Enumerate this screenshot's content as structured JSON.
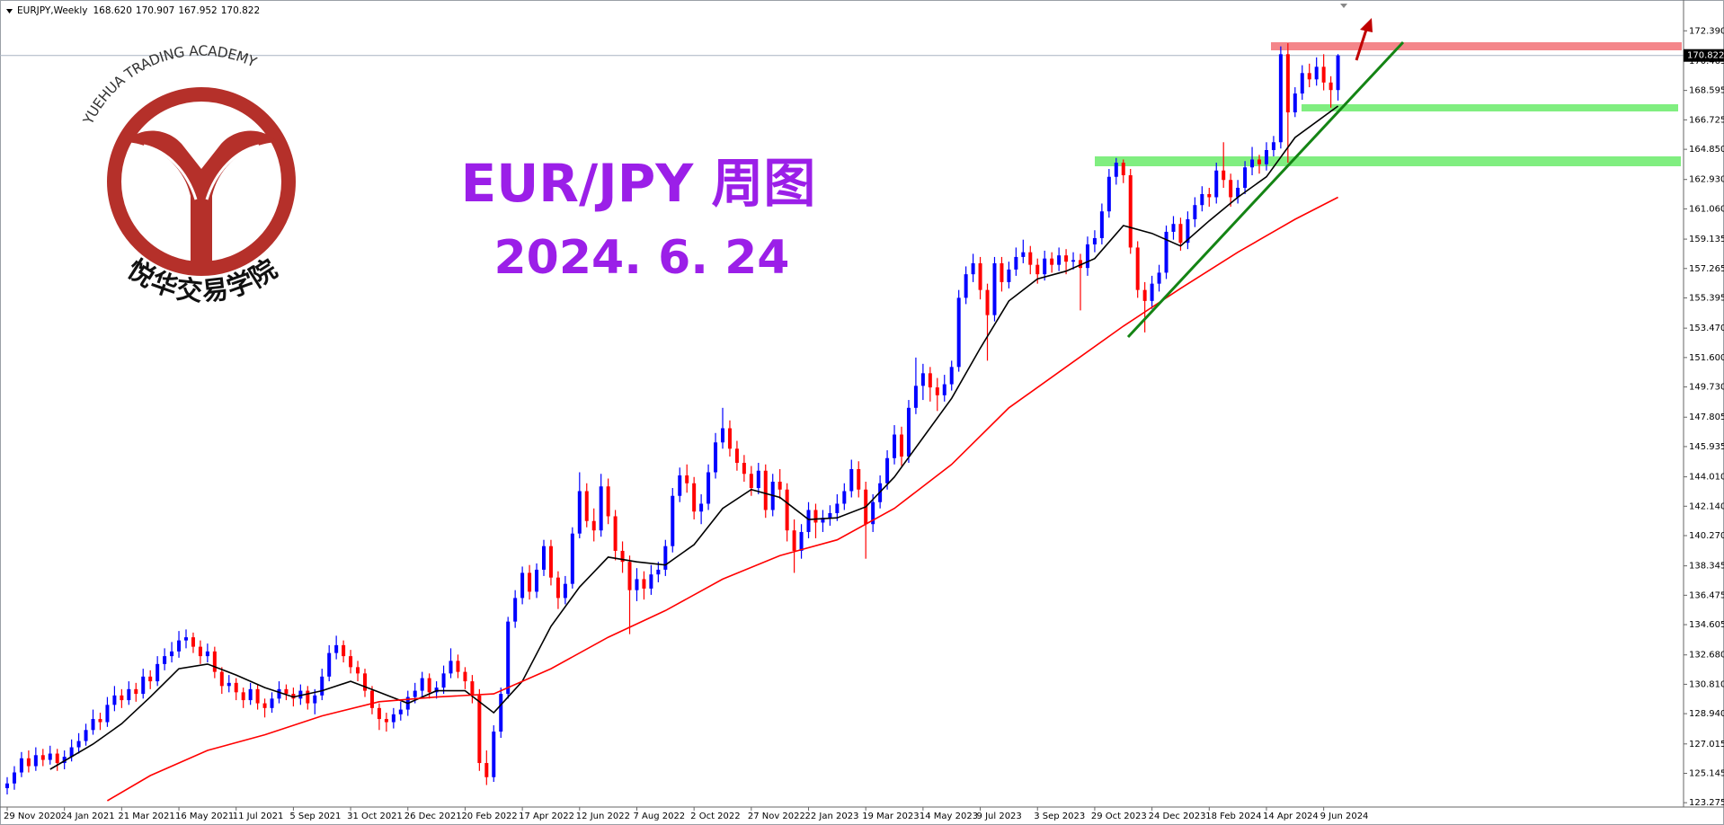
{
  "chart_data": {
    "type": "candlestick",
    "header_symbol": "EURJPY,Weekly",
    "header_labels": [
      "168.620",
      "170.907",
      "167.952",
      "170.822"
    ],
    "title": "EUR/JPY 周图",
    "subtitle": "2024. 6. 24",
    "logo_text": "YUEHUA TRADING ACADEMY",
    "logo_name": "悦华交易学院",
    "up_color": "#0000ff",
    "down_color": "#ff0000",
    "ylim": [
      123.0,
      174.35
    ],
    "yticks": [
      {
        "value": 172.39,
        "label": "172.390"
      },
      170.465,
      168.595,
      166.725,
      {
        "value": 164.85,
        "label": "164.850"
      },
      {
        "value": 162.93,
        "label": "162.930"
      },
      {
        "value": 161.06,
        "label": "161.060"
      },
      159.135,
      157.265,
      155.395,
      {
        "value": 153.47,
        "label": "153.470"
      },
      {
        "value": 151.6,
        "label": "151.600"
      },
      {
        "value": 149.73,
        "label": "149.730"
      },
      147.805,
      145.935,
      {
        "value": 144.01,
        "label": "144.010"
      },
      {
        "value": 142.14,
        "label": "142.140"
      },
      {
        "value": 140.27,
        "label": "140.270"
      },
      138.345,
      136.475,
      134.605,
      {
        "value": 132.68,
        "label": "132.680"
      },
      {
        "value": 130.81,
        "label": "130.810"
      },
      {
        "value": 128.94,
        "label": "128.940"
      },
      127.015,
      125.145,
      123.275
    ],
    "x_labels": [
      "29 Nov 2020",
      "24 Jan 2021",
      "21 Mar 2021",
      "16 May 2021",
      "11 Jul 2021",
      "5 Sep 2021",
      "31 Oct 2021",
      "26 Dec 2021",
      "20 Feb 2022",
      "17 Apr 2022",
      "12 Jun 2022",
      "7 Aug 2022",
      "2 Oct 2022",
      "27 Nov 2022",
      "22 Jan 2023",
      "19 Mar 2023",
      "14 May 2023",
      "9 Jul 2023",
      "3 Sep 2023",
      "29 Oct 2023",
      "24 Dec 2023",
      "18 Feb 2024",
      "14 Apr 2024",
      "9 Jun 2024"
    ],
    "ohlc": [
      [
        124.2,
        124.9,
        123.8,
        124.5
      ],
      [
        124.5,
        125.6,
        124.1,
        125.2
      ],
      [
        125.2,
        126.5,
        124.9,
        126.1
      ],
      [
        126.1,
        126.6,
        125.2,
        125.6
      ],
      [
        125.6,
        126.8,
        125.3,
        126.3
      ],
      [
        126.3,
        126.7,
        125.6,
        126.0
      ],
      [
        126.0,
        126.9,
        125.7,
        126.4
      ],
      [
        126.4,
        126.7,
        125.3,
        125.8
      ],
      [
        125.8,
        126.6,
        125.4,
        126.2
      ],
      [
        126.2,
        127.3,
        125.9,
        126.8
      ],
      [
        126.8,
        127.7,
        126.4,
        127.2
      ],
      [
        127.2,
        128.3,
        126.9,
        127.9
      ],
      [
        127.9,
        129.2,
        127.6,
        128.6
      ],
      [
        128.6,
        129.0,
        127.9,
        128.4
      ],
      [
        128.4,
        130.0,
        128.1,
        129.5
      ],
      [
        129.5,
        130.7,
        129.1,
        130.1
      ],
      [
        130.1,
        130.5,
        129.3,
        129.8
      ],
      [
        129.8,
        131.0,
        129.5,
        130.5
      ],
      [
        130.5,
        130.9,
        129.7,
        130.2
      ],
      [
        130.2,
        131.8,
        129.9,
        131.3
      ],
      [
        131.3,
        131.7,
        130.5,
        131.0
      ],
      [
        131.0,
        132.6,
        130.7,
        132.1
      ],
      [
        132.1,
        133.1,
        131.7,
        132.6
      ],
      [
        132.6,
        133.5,
        132.2,
        132.9
      ],
      [
        132.9,
        134.2,
        132.5,
        133.6
      ],
      [
        133.6,
        134.3,
        133.1,
        133.8
      ],
      [
        133.8,
        134.1,
        132.8,
        133.2
      ],
      [
        133.2,
        133.6,
        132.1,
        132.6
      ],
      [
        132.6,
        133.4,
        132.2,
        132.9
      ],
      [
        132.9,
        133.2,
        131.2,
        131.6
      ],
      [
        131.6,
        131.9,
        130.2,
        130.7
      ],
      [
        130.7,
        131.4,
        130.3,
        130.9
      ],
      [
        130.9,
        131.2,
        129.8,
        130.3
      ],
      [
        130.3,
        130.6,
        129.3,
        129.8
      ],
      [
        129.8,
        130.9,
        129.5,
        130.5
      ],
      [
        130.5,
        130.8,
        129.2,
        129.6
      ],
      [
        129.6,
        129.9,
        128.7,
        129.3
      ],
      [
        129.3,
        130.3,
        129.0,
        129.9
      ],
      [
        129.9,
        131.0,
        129.6,
        130.5
      ],
      [
        130.5,
        130.8,
        129.8,
        130.2
      ],
      [
        130.2,
        130.6,
        129.4,
        129.9
      ],
      [
        129.9,
        130.8,
        129.5,
        130.4
      ],
      [
        130.4,
        130.7,
        129.2,
        129.6
      ],
      [
        129.6,
        130.5,
        128.9,
        130.1
      ],
      [
        130.1,
        131.8,
        129.8,
        131.3
      ],
      [
        131.3,
        133.3,
        131.0,
        132.8
      ],
      [
        132.8,
        133.9,
        132.4,
        133.3
      ],
      [
        133.3,
        133.6,
        132.2,
        132.6
      ],
      [
        132.6,
        133.0,
        131.5,
        131.9
      ],
      [
        131.9,
        132.3,
        131.0,
        131.5
      ],
      [
        131.5,
        131.8,
        130.0,
        130.4
      ],
      [
        130.4,
        130.7,
        128.9,
        129.3
      ],
      [
        129.3,
        129.6,
        127.9,
        128.6
      ],
      [
        128.6,
        129.0,
        127.8,
        128.4
      ],
      [
        128.4,
        129.3,
        128.0,
        128.9
      ],
      [
        128.9,
        129.7,
        128.5,
        129.2
      ],
      [
        129.2,
        130.4,
        128.8,
        130.0
      ],
      [
        130.0,
        130.9,
        129.6,
        130.4
      ],
      [
        130.4,
        131.6,
        130.0,
        131.2
      ],
      [
        131.2,
        131.5,
        129.9,
        130.3
      ],
      [
        130.3,
        131.0,
        129.9,
        130.6
      ],
      [
        130.6,
        132.0,
        130.2,
        131.5
      ],
      [
        131.5,
        133.1,
        131.2,
        132.3
      ],
      [
        132.3,
        132.7,
        131.2,
        131.6
      ],
      [
        131.6,
        131.9,
        130.5,
        131.0
      ],
      [
        131.0,
        131.4,
        129.6,
        130.1
      ],
      [
        130.1,
        130.5,
        125.3,
        125.8
      ],
      [
        125.8,
        126.6,
        124.4,
        124.9
      ],
      [
        124.9,
        128.2,
        124.6,
        127.8
      ],
      [
        127.8,
        130.6,
        127.4,
        130.2
      ],
      [
        130.2,
        135.1,
        129.9,
        134.8
      ],
      [
        134.8,
        136.8,
        134.4,
        136.3
      ],
      [
        136.3,
        138.3,
        135.9,
        137.9
      ],
      [
        137.9,
        138.4,
        136.2,
        136.7
      ],
      [
        136.7,
        138.5,
        136.3,
        138.1
      ],
      [
        138.1,
        140.0,
        137.7,
        139.6
      ],
      [
        139.6,
        140.0,
        137.1,
        137.6
      ],
      [
        137.6,
        138.0,
        135.6,
        136.3
      ],
      [
        136.3,
        137.7,
        135.9,
        137.2
      ],
      [
        137.2,
        140.8,
        136.9,
        140.4
      ],
      [
        140.4,
        144.3,
        140.1,
        143.1
      ],
      [
        143.1,
        143.6,
        140.8,
        141.2
      ],
      [
        141.2,
        142.0,
        139.9,
        140.6
      ],
      [
        140.6,
        144.2,
        140.2,
        143.4
      ],
      [
        143.4,
        143.9,
        141.0,
        141.5
      ],
      [
        141.5,
        141.9,
        138.7,
        139.3
      ],
      [
        139.3,
        139.9,
        137.9,
        138.6
      ],
      [
        138.6,
        139.0,
        134.0,
        136.8
      ],
      [
        136.8,
        138.2,
        136.1,
        137.5
      ],
      [
        137.5,
        138.0,
        136.2,
        136.9
      ],
      [
        136.9,
        138.4,
        136.5,
        137.8
      ],
      [
        137.8,
        138.6,
        137.3,
        138.1
      ],
      [
        138.1,
        140.0,
        137.7,
        139.6
      ],
      [
        139.6,
        143.3,
        139.2,
        142.8
      ],
      [
        142.8,
        144.6,
        142.4,
        144.1
      ],
      [
        144.1,
        144.8,
        143.0,
        143.6
      ],
      [
        143.6,
        144.0,
        141.3,
        141.8
      ],
      [
        141.8,
        142.9,
        141.0,
        142.3
      ],
      [
        142.3,
        144.8,
        141.9,
        144.3
      ],
      [
        144.3,
        146.8,
        143.9,
        146.2
      ],
      [
        146.2,
        148.4,
        145.8,
        147.1
      ],
      [
        147.1,
        147.6,
        145.3,
        145.8
      ],
      [
        145.8,
        146.3,
        144.4,
        144.9
      ],
      [
        144.9,
        145.4,
        143.7,
        144.2
      ],
      [
        144.2,
        144.7,
        142.8,
        143.3
      ],
      [
        143.3,
        144.9,
        142.9,
        144.4
      ],
      [
        144.4,
        144.8,
        141.4,
        141.9
      ],
      [
        141.9,
        144.2,
        141.5,
        143.7
      ],
      [
        143.7,
        144.5,
        142.6,
        143.2
      ],
      [
        143.2,
        143.6,
        139.9,
        140.6
      ],
      [
        140.6,
        141.3,
        137.9,
        139.3
      ],
      [
        139.3,
        141.0,
        138.8,
        140.5
      ],
      [
        140.5,
        142.4,
        140.1,
        141.9
      ],
      [
        141.9,
        142.3,
        140.1,
        141.1
      ],
      [
        141.1,
        141.9,
        140.5,
        141.4
      ],
      [
        141.4,
        142.2,
        140.9,
        141.7
      ],
      [
        141.7,
        142.9,
        141.2,
        142.3
      ],
      [
        142.3,
        143.6,
        141.9,
        143.1
      ],
      [
        143.1,
        145.1,
        142.7,
        144.5
      ],
      [
        144.5,
        145.0,
        142.7,
        143.2
      ],
      [
        143.2,
        143.7,
        138.8,
        141.0
      ],
      [
        141.0,
        142.9,
        140.5,
        142.4
      ],
      [
        142.4,
        144.1,
        142.0,
        143.6
      ],
      [
        143.6,
        145.7,
        143.2,
        145.2
      ],
      [
        145.2,
        147.3,
        144.8,
        146.7
      ],
      [
        146.7,
        147.2,
        144.7,
        145.3
      ],
      [
        145.3,
        148.9,
        144.9,
        148.4
      ],
      [
        148.4,
        151.6,
        148.0,
        149.8
      ],
      [
        149.8,
        151.2,
        148.9,
        150.6
      ],
      [
        150.6,
        151.0,
        148.8,
        149.7
      ],
      [
        149.7,
        150.3,
        148.2,
        149.2
      ],
      [
        149.2,
        150.5,
        148.8,
        149.9
      ],
      [
        149.9,
        151.4,
        149.5,
        151.0
      ],
      [
        151.0,
        155.9,
        150.7,
        155.4
      ],
      [
        155.4,
        157.4,
        155.0,
        156.9
      ],
      [
        156.9,
        158.2,
        156.4,
        157.6
      ],
      [
        157.6,
        158.0,
        155.3,
        155.9
      ],
      [
        155.9,
        156.3,
        151.4,
        154.3
      ],
      [
        154.3,
        158.0,
        153.9,
        157.6
      ],
      [
        157.6,
        158.0,
        155.8,
        156.4
      ],
      [
        156.4,
        157.7,
        156.0,
        157.2
      ],
      [
        157.2,
        158.6,
        156.8,
        158.0
      ],
      [
        158.0,
        159.1,
        157.6,
        158.3
      ],
      [
        158.3,
        158.7,
        156.9,
        157.5
      ],
      [
        157.5,
        157.9,
        156.3,
        156.9
      ],
      [
        156.9,
        158.4,
        156.5,
        157.9
      ],
      [
        157.9,
        158.3,
        157.0,
        157.5
      ],
      [
        157.5,
        158.6,
        157.1,
        158.1
      ],
      [
        158.1,
        158.5,
        156.9,
        157.7
      ],
      [
        157.7,
        158.3,
        157.2,
        157.8
      ],
      [
        157.8,
        158.2,
        154.6,
        157.3
      ],
      [
        157.3,
        159.3,
        156.8,
        158.8
      ],
      [
        158.8,
        159.7,
        158.3,
        159.2
      ],
      [
        159.2,
        161.4,
        158.8,
        160.9
      ],
      [
        160.9,
        163.6,
        160.5,
        163.1
      ],
      [
        163.1,
        164.3,
        162.6,
        164.0
      ],
      [
        164.0,
        164.2,
        162.7,
        163.2
      ],
      [
        163.2,
        163.6,
        158.2,
        158.6
      ],
      [
        158.6,
        159.0,
        155.4,
        155.9
      ],
      [
        155.9,
        156.4,
        153.2,
        155.2
      ],
      [
        155.2,
        156.8,
        154.7,
        156.3
      ],
      [
        156.3,
        157.5,
        155.8,
        157.0
      ],
      [
        157.0,
        160.0,
        156.6,
        159.6
      ],
      [
        159.6,
        160.6,
        159.1,
        160.1
      ],
      [
        160.1,
        160.5,
        158.4,
        158.9
      ],
      [
        158.9,
        160.9,
        158.5,
        160.4
      ],
      [
        160.4,
        161.8,
        159.9,
        161.3
      ],
      [
        161.3,
        162.5,
        160.9,
        162.0
      ],
      [
        162.0,
        162.4,
        161.2,
        161.8
      ],
      [
        161.8,
        164.0,
        161.4,
        163.5
      ],
      [
        163.5,
        165.3,
        162.4,
        162.9
      ],
      [
        162.9,
        163.3,
        161.2,
        161.8
      ],
      [
        161.8,
        162.9,
        161.4,
        162.4
      ],
      [
        162.4,
        164.1,
        162.0,
        163.7
      ],
      [
        163.7,
        165.0,
        163.2,
        164.2
      ],
      [
        164.2,
        164.5,
        163.3,
        163.9
      ],
      [
        163.9,
        165.3,
        163.5,
        164.8
      ],
      [
        164.8,
        165.7,
        164.4,
        165.3
      ],
      [
        165.3,
        171.4,
        164.9,
        170.9
      ],
      [
        170.9,
        171.6,
        164.0,
        167.2
      ],
      [
        167.2,
        168.8,
        166.9,
        168.4
      ],
      [
        168.4,
        170.2,
        168.0,
        169.7
      ],
      [
        169.7,
        170.3,
        168.8,
        169.3
      ],
      [
        169.3,
        170.7,
        168.9,
        170.1
      ],
      [
        170.1,
        170.9,
        168.6,
        169.1
      ],
      [
        169.1,
        169.5,
        167.5,
        168.62
      ],
      [
        168.62,
        170.907,
        167.952,
        170.822
      ]
    ],
    "moving_averages": [
      {
        "color": "#000000",
        "x": [
          6,
          12,
          16,
          20,
          24,
          28,
          32,
          36,
          40,
          44,
          48,
          52,
          56,
          60,
          64,
          68,
          72,
          76,
          80,
          84,
          88,
          92,
          96,
          100,
          104,
          108,
          112,
          116,
          120,
          124,
          128,
          132,
          136,
          140,
          144,
          148,
          152,
          156,
          160,
          164,
          168,
          172,
          176,
          180,
          186
        ],
        "values": [
          125.4,
          127.0,
          128.3,
          130.0,
          131.8,
          132.1,
          131.4,
          130.6,
          130.0,
          130.4,
          131.0,
          130.3,
          129.6,
          130.4,
          130.4,
          129.0,
          131.0,
          134.5,
          137.0,
          138.9,
          138.6,
          138.4,
          139.7,
          142.0,
          143.2,
          142.7,
          141.3,
          141.4,
          142.1,
          144.0,
          146.5,
          149.0,
          152.2,
          155.2,
          156.6,
          157.1,
          157.9,
          160.0,
          159.5,
          158.7,
          160.3,
          161.8,
          163.1,
          165.6,
          167.6
        ]
      },
      {
        "color": "#ff0000",
        "x": [
          14,
          20,
          28,
          36,
          44,
          52,
          60,
          68,
          76,
          84,
          92,
          100,
          108,
          116,
          124,
          132,
          140,
          148,
          156,
          164,
          172,
          180,
          186
        ],
        "values": [
          123.4,
          125.0,
          126.6,
          127.6,
          128.8,
          129.7,
          130.0,
          130.2,
          131.8,
          133.8,
          135.5,
          137.5,
          139.0,
          140.0,
          142.0,
          144.8,
          148.4,
          151.0,
          153.6,
          156.0,
          158.3,
          160.4,
          161.8
        ]
      }
    ]
  }
}
